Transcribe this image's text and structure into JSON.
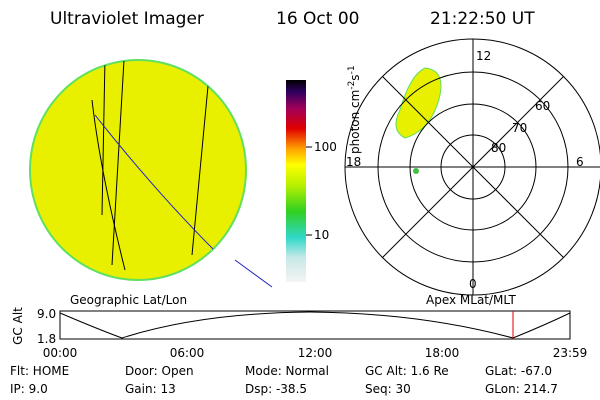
{
  "header": {
    "title": "Ultraviolet Imager",
    "date": "16 Oct 00",
    "time": "21:22:50 UT"
  },
  "colorbar": {
    "label": [
      "photon cm",
      "-2",
      "s",
      "-1"
    ],
    "ticks": [
      "100",
      "10"
    ]
  },
  "polar": {
    "mlt_labels": [
      "12",
      "18",
      "6",
      "0"
    ],
    "mlat_labels": [
      "80",
      "70",
      "60"
    ]
  },
  "panel_labels": [
    "Geographic Lat/Lon",
    "Apex MLat/MLT"
  ],
  "orbit": {
    "axis_label": "GC Alt",
    "y_labels": [
      "9.0",
      "1.8"
    ],
    "time_labels": [
      "00:00",
      "06:00",
      "12:00",
      "18:00",
      "23:59"
    ]
  },
  "footer": {
    "rows": [
      [
        "Flt: HOME",
        "Door: Open",
        "Mode: Normal",
        "GC Alt: 1.6 Re",
        "GLat: -67.0"
      ],
      [
        "IP: 9.0",
        "Gain: 13",
        "Dsp: -38.5",
        "Seq: 30",
        "GLon: 214.7"
      ]
    ]
  }
}
